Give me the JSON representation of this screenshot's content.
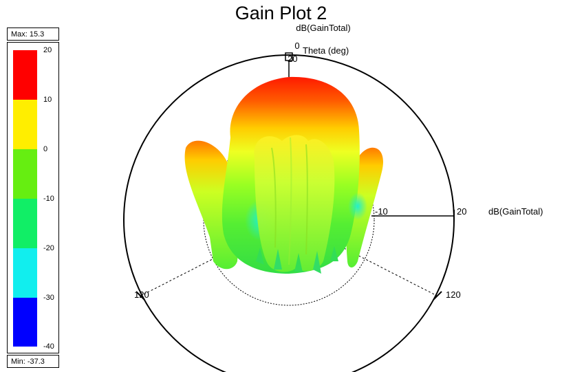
{
  "title": "Gain Plot 2",
  "quantity_label": "dB(GainTotal)",
  "axis_label_side": "dB(GainTotal)",
  "theta_label": "Theta (deg)",
  "theta_marks": [
    "0",
    "120",
    "120"
  ],
  "radial_ticks": [
    "20",
    "-10",
    "20"
  ],
  "legend": {
    "max_text": "Max: 15.3",
    "min_text": "Min: -37.3",
    "ticks": [
      "20",
      "10",
      "0",
      "-10",
      "-20",
      "-30",
      "-40"
    ],
    "bands": [
      {
        "color": "#ff0000"
      },
      {
        "color": "#ffee00"
      },
      {
        "color": "#66ee11"
      },
      {
        "color": "#11ee66"
      },
      {
        "color": "#11eeee"
      },
      {
        "color": "#0000ff"
      }
    ]
  }
}
